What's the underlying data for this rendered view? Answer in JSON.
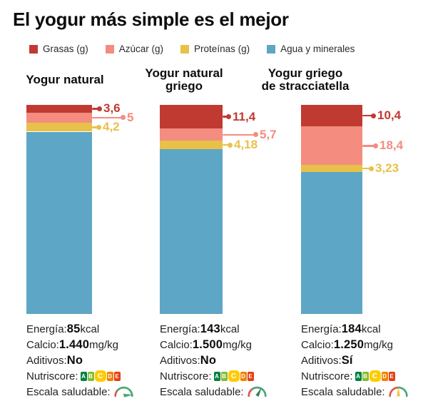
{
  "title": "El yogur más simple es el mejor",
  "colors": {
    "grasas": "#c13a31",
    "azucar": "#f48c80",
    "proteinas": "#e8c149",
    "agua": "#5ea6c5",
    "nutriscore": [
      "#038141",
      "#85bb2f",
      "#fecb02",
      "#ef8200",
      "#e63e11"
    ],
    "gauge_red": "#e2574c",
    "gauge_green": "#4aa876",
    "gauge_dark_green": "#2e7d5a",
    "gauge_yellow": "#f2c53d"
  },
  "legend": [
    {
      "label": "Grasas (g)",
      "color_key": "grasas"
    },
    {
      "label": "Azúcar (g)",
      "color_key": "azucar"
    },
    {
      "label": "Proteínas (g)",
      "color_key": "proteinas"
    },
    {
      "label": "Agua y minerales",
      "color_key": "agua"
    }
  ],
  "chart_data": {
    "type": "bar",
    "stacked": true,
    "total_per_bar": 100,
    "unit": "g per 100 g",
    "grid": false,
    "legend_position": "top",
    "categories": [
      "Yogur natural",
      "Yogur natural griego",
      "Yogur griego de stracciatella"
    ],
    "series": [
      {
        "name": "Grasas (g)",
        "color_key": "grasas",
        "values": [
          3.6,
          11.4,
          10.4
        ],
        "display_labels": [
          "3,6",
          "11,4",
          "10,4"
        ]
      },
      {
        "name": "Azúcar (g)",
        "color_key": "azucar",
        "values": [
          5,
          5.7,
          18.4
        ],
        "display_labels": [
          "5",
          "5,7",
          "18,4"
        ]
      },
      {
        "name": "Proteínas (g)",
        "color_key": "proteinas",
        "values": [
          4.2,
          4.18,
          3.23
        ],
        "display_labels": [
          "4,2",
          "4,18",
          "3,23"
        ]
      },
      {
        "name": "Agua y minerales",
        "color_key": "agua",
        "values": [
          87.2,
          78.72,
          67.97
        ],
        "display_labels": [
          "",
          "",
          ""
        ]
      }
    ]
  },
  "columns": [
    {
      "header_lines": [
        "Yogur natural"
      ],
      "facts": [
        {
          "label": "Energía: ",
          "value": "85",
          "suffix": " kcal"
        },
        {
          "label": "Calcio: ",
          "value": "1.440",
          "suffix": " mg/kg"
        },
        {
          "label": "Aditivos: ",
          "value": "No",
          "suffix": ""
        }
      ],
      "nutriscore_label": "Nutriscore:",
      "nutriscore_letters": [
        "A",
        "B",
        "C",
        "D",
        "E"
      ],
      "nutriscore_highlight": "C",
      "health_label": "Escala saludable: ",
      "health_gauge": "needle-right"
    },
    {
      "header_lines": [
        "Yogur natural",
        "griego"
      ],
      "facts": [
        {
          "label": "Energía: ",
          "value": "143",
          "suffix": " kcal"
        },
        {
          "label": "Calcio: ",
          "value": "1.500",
          "suffix": " mg/kg"
        },
        {
          "label": "Aditivos: ",
          "value": "No",
          "suffix": ""
        }
      ],
      "nutriscore_label": "Nutriscore:",
      "nutriscore_letters": [
        "A",
        "B",
        "C",
        "D",
        "E"
      ],
      "nutriscore_highlight": "C",
      "health_label": "Escala saludable: ",
      "health_gauge": "needle-up-right"
    },
    {
      "header_lines": [
        "Yogur griego",
        "de stracciatella"
      ],
      "facts": [
        {
          "label": "Energía: ",
          "value": "184",
          "suffix": " kcal"
        },
        {
          "label": "Calcio: ",
          "value": "1.250",
          "suffix": " mg/kg"
        },
        {
          "label": "Aditivos: ",
          "value": "Sí",
          "suffix": ""
        }
      ],
      "nutriscore_label": "Nutriscore:",
      "nutriscore_letters": [
        "A",
        "B",
        "C",
        "D",
        "E"
      ],
      "nutriscore_highlight": "C",
      "health_label": "Escala saludable: ",
      "health_gauge": "needle-up"
    }
  ]
}
